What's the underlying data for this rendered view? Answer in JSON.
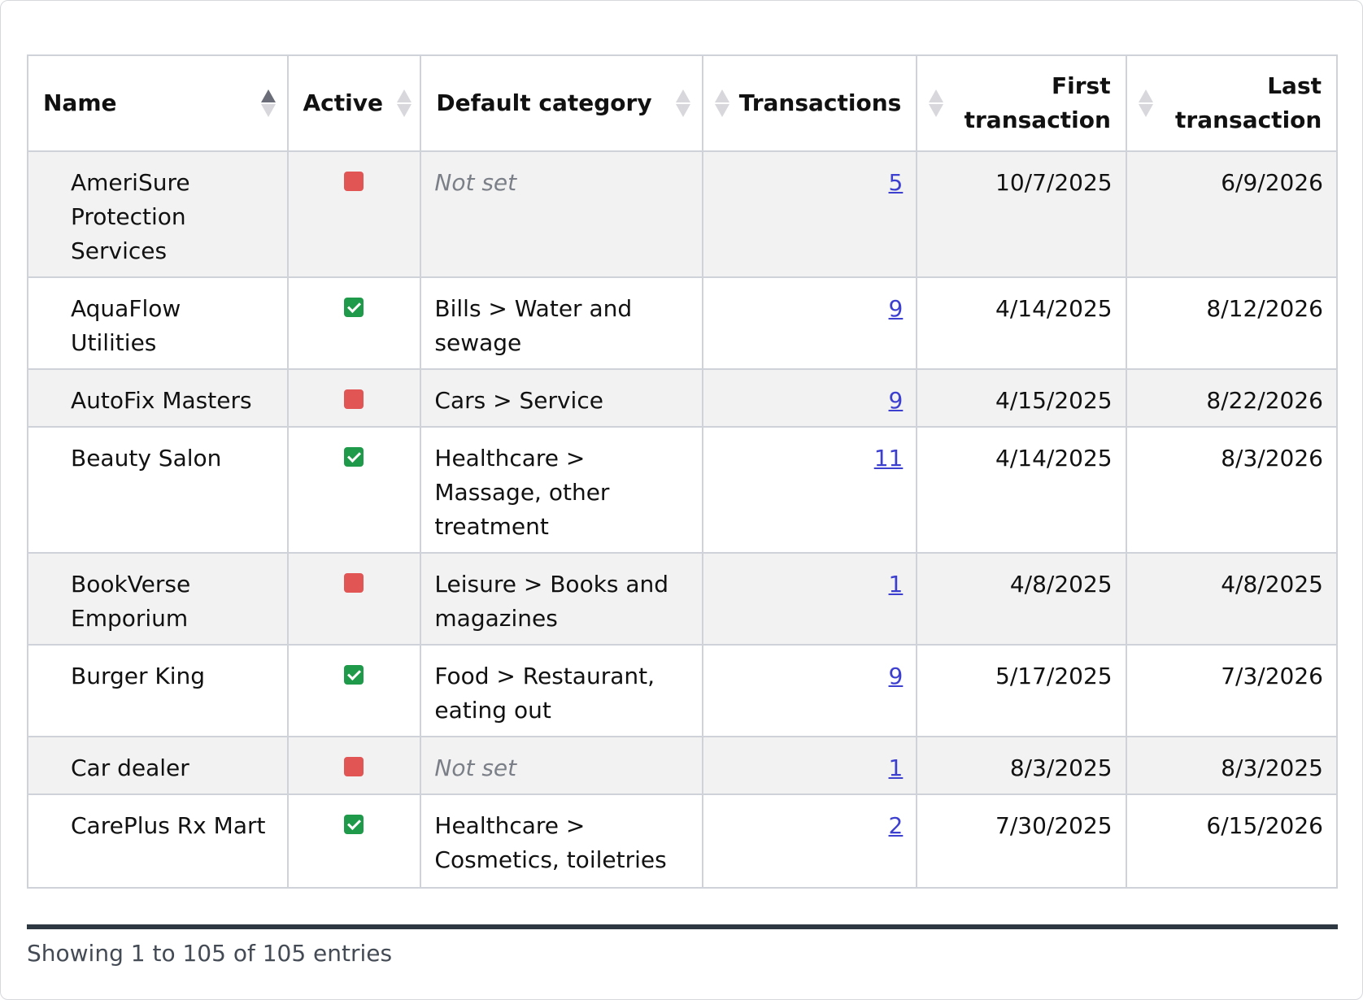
{
  "columns": {
    "name": "Name",
    "active": "Active",
    "category": "Default category",
    "transactions": "Transactions",
    "first": "First transaction",
    "last": "Last transaction"
  },
  "rows": [
    {
      "name": "AmeriSure Protection Services",
      "active": false,
      "category": "Not set",
      "category_set": false,
      "transactions": "5",
      "first": "10/7/2025",
      "last": "6/9/2026"
    },
    {
      "name": "AquaFlow Utilities",
      "active": true,
      "category": "Bills > Water and sewage",
      "category_set": true,
      "transactions": "9",
      "first": "4/14/2025",
      "last": "8/12/2026"
    },
    {
      "name": "AutoFix Masters",
      "active": false,
      "category": "Cars > Service",
      "category_set": true,
      "transactions": "9",
      "first": "4/15/2025",
      "last": "8/22/2026"
    },
    {
      "name": "Beauty Salon",
      "active": true,
      "category": "Healthcare > Massage, other treatment",
      "category_set": true,
      "transactions": "11",
      "first": "4/14/2025",
      "last": "8/3/2026"
    },
    {
      "name": "BookVerse Emporium",
      "active": false,
      "category": "Leisure > Books and magazines",
      "category_set": true,
      "transactions": "1",
      "first": "4/8/2025",
      "last": "4/8/2025"
    },
    {
      "name": "Burger King",
      "active": true,
      "category": "Food > Restaurant, eating out",
      "category_set": true,
      "transactions": "9",
      "first": "5/17/2025",
      "last": "7/3/2026"
    },
    {
      "name": "Car dealer",
      "active": false,
      "category": "Not set",
      "category_set": false,
      "transactions": "1",
      "first": "8/3/2025",
      "last": "8/3/2025"
    },
    {
      "name": "CarePlus Rx Mart",
      "active": true,
      "category": "Healthcare > Cosmetics, toiletries",
      "category_set": true,
      "transactions": "2",
      "first": "7/30/2025",
      "last": "6/15/2026"
    }
  ],
  "footer": "Showing 1 to 105 of 105 entries",
  "colors": {
    "active": "#1f9a4a",
    "inactive": "#e25555",
    "link": "#3d3fcf"
  }
}
